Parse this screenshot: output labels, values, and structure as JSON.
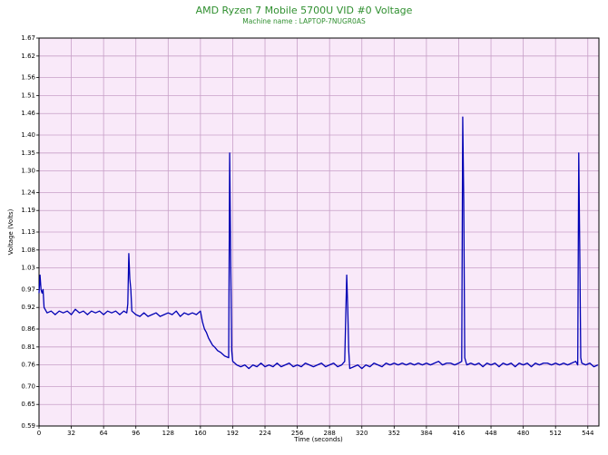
{
  "chart_data": {
    "type": "line",
    "title": "AMD Ryzen 7 Mobile 5700U VID #0 Voltage",
    "subtitle": "Machine name : LAPTOP-7NUGR0AS",
    "x_label": "Time (seconds)",
    "y_label": "Voltage (Volts)",
    "background": "#f9e9f9",
    "grid": true,
    "grid_color": "#c8a0c8",
    "xlim": [
      0,
      555
    ],
    "ylim": [
      0.59,
      1.67
    ],
    "xticks": [
      0,
      32,
      64,
      96,
      128,
      160,
      192,
      224,
      256,
      288,
      320,
      352,
      384,
      416,
      448,
      480,
      512,
      544
    ],
    "yticks": [
      0.59,
      {
        "value": 0.65,
        "label": "0.65"
      },
      {
        "value": 0.7,
        "label": "0.70"
      },
      0.76,
      0.81,
      0.86,
      0.92,
      0.97,
      1.03,
      1.08,
      1.13,
      1.19,
      1.24,
      {
        "value": 1.3,
        "label": "1.30"
      },
      1.35,
      {
        "value": 1.4,
        "label": "1.40"
      },
      1.46,
      1.51,
      1.56,
      1.62,
      1.67
    ],
    "x": [
      0,
      1,
      2,
      3,
      4,
      5,
      8,
      12,
      16,
      20,
      24,
      28,
      32,
      36,
      40,
      44,
      48,
      52,
      56,
      60,
      64,
      68,
      72,
      76,
      80,
      84,
      87,
      88,
      89,
      90,
      91,
      92,
      96,
      100,
      104,
      108,
      112,
      116,
      120,
      124,
      128,
      132,
      136,
      140,
      144,
      148,
      152,
      156,
      160,
      162,
      164,
      166,
      168,
      170,
      172,
      174,
      177,
      180,
      184,
      188,
      189,
      190,
      191,
      192,
      194,
      196,
      200,
      204,
      208,
      212,
      216,
      220,
      224,
      228,
      232,
      236,
      240,
      244,
      248,
      252,
      256,
      260,
      264,
      268,
      272,
      276,
      280,
      284,
      288,
      292,
      296,
      300,
      303,
      305,
      306,
      307,
      308,
      312,
      316,
      320,
      324,
      328,
      332,
      336,
      340,
      344,
      348,
      352,
      356,
      360,
      364,
      368,
      372,
      376,
      380,
      384,
      388,
      392,
      396,
      400,
      404,
      408,
      412,
      416,
      419,
      420,
      421,
      422,
      424,
      428,
      432,
      436,
      440,
      444,
      448,
      452,
      456,
      460,
      464,
      468,
      472,
      476,
      480,
      484,
      488,
      492,
      496,
      500,
      504,
      508,
      512,
      516,
      520,
      524,
      528,
      532,
      534,
      535,
      536,
      537,
      538,
      542,
      546,
      550,
      554
    ],
    "series": [
      {
        "name": "VID #0 Voltage",
        "color": "#0000b4",
        "values": [
          0.96,
          1.01,
          0.97,
          0.96,
          0.97,
          0.92,
          0.905,
          0.91,
          0.9,
          0.91,
          0.905,
          0.91,
          0.9,
          0.915,
          0.905,
          0.91,
          0.9,
          0.91,
          0.905,
          0.91,
          0.9,
          0.91,
          0.905,
          0.91,
          0.9,
          0.91,
          0.905,
          0.93,
          1.07,
          1.0,
          0.97,
          0.91,
          0.9,
          0.895,
          0.905,
          0.895,
          0.9,
          0.905,
          0.895,
          0.9,
          0.905,
          0.9,
          0.91,
          0.895,
          0.905,
          0.9,
          0.905,
          0.9,
          0.91,
          0.88,
          0.86,
          0.85,
          0.835,
          0.825,
          0.815,
          0.81,
          0.8,
          0.795,
          0.785,
          0.78,
          1.35,
          1.05,
          0.8,
          0.77,
          0.765,
          0.76,
          0.755,
          0.76,
          0.75,
          0.76,
          0.755,
          0.765,
          0.755,
          0.76,
          0.755,
          0.765,
          0.755,
          0.76,
          0.765,
          0.755,
          0.76,
          0.755,
          0.765,
          0.76,
          0.755,
          0.76,
          0.765,
          0.755,
          0.76,
          0.765,
          0.755,
          0.76,
          0.77,
          1.01,
          0.92,
          0.8,
          0.75,
          0.755,
          0.76,
          0.75,
          0.76,
          0.755,
          0.765,
          0.76,
          0.755,
          0.765,
          0.76,
          0.765,
          0.76,
          0.765,
          0.76,
          0.765,
          0.76,
          0.765,
          0.76,
          0.765,
          0.76,
          0.765,
          0.77,
          0.76,
          0.765,
          0.765,
          0.76,
          0.765,
          0.77,
          1.45,
          1.22,
          0.78,
          0.76,
          0.765,
          0.76,
          0.765,
          0.755,
          0.765,
          0.76,
          0.765,
          0.755,
          0.765,
          0.76,
          0.765,
          0.755,
          0.765,
          0.76,
          0.765,
          0.755,
          0.765,
          0.76,
          0.765,
          0.765,
          0.76,
          0.765,
          0.76,
          0.765,
          0.76,
          0.765,
          0.77,
          0.76,
          1.35,
          1.08,
          0.78,
          0.765,
          0.76,
          0.765,
          0.755,
          0.76
        ]
      }
    ]
  }
}
